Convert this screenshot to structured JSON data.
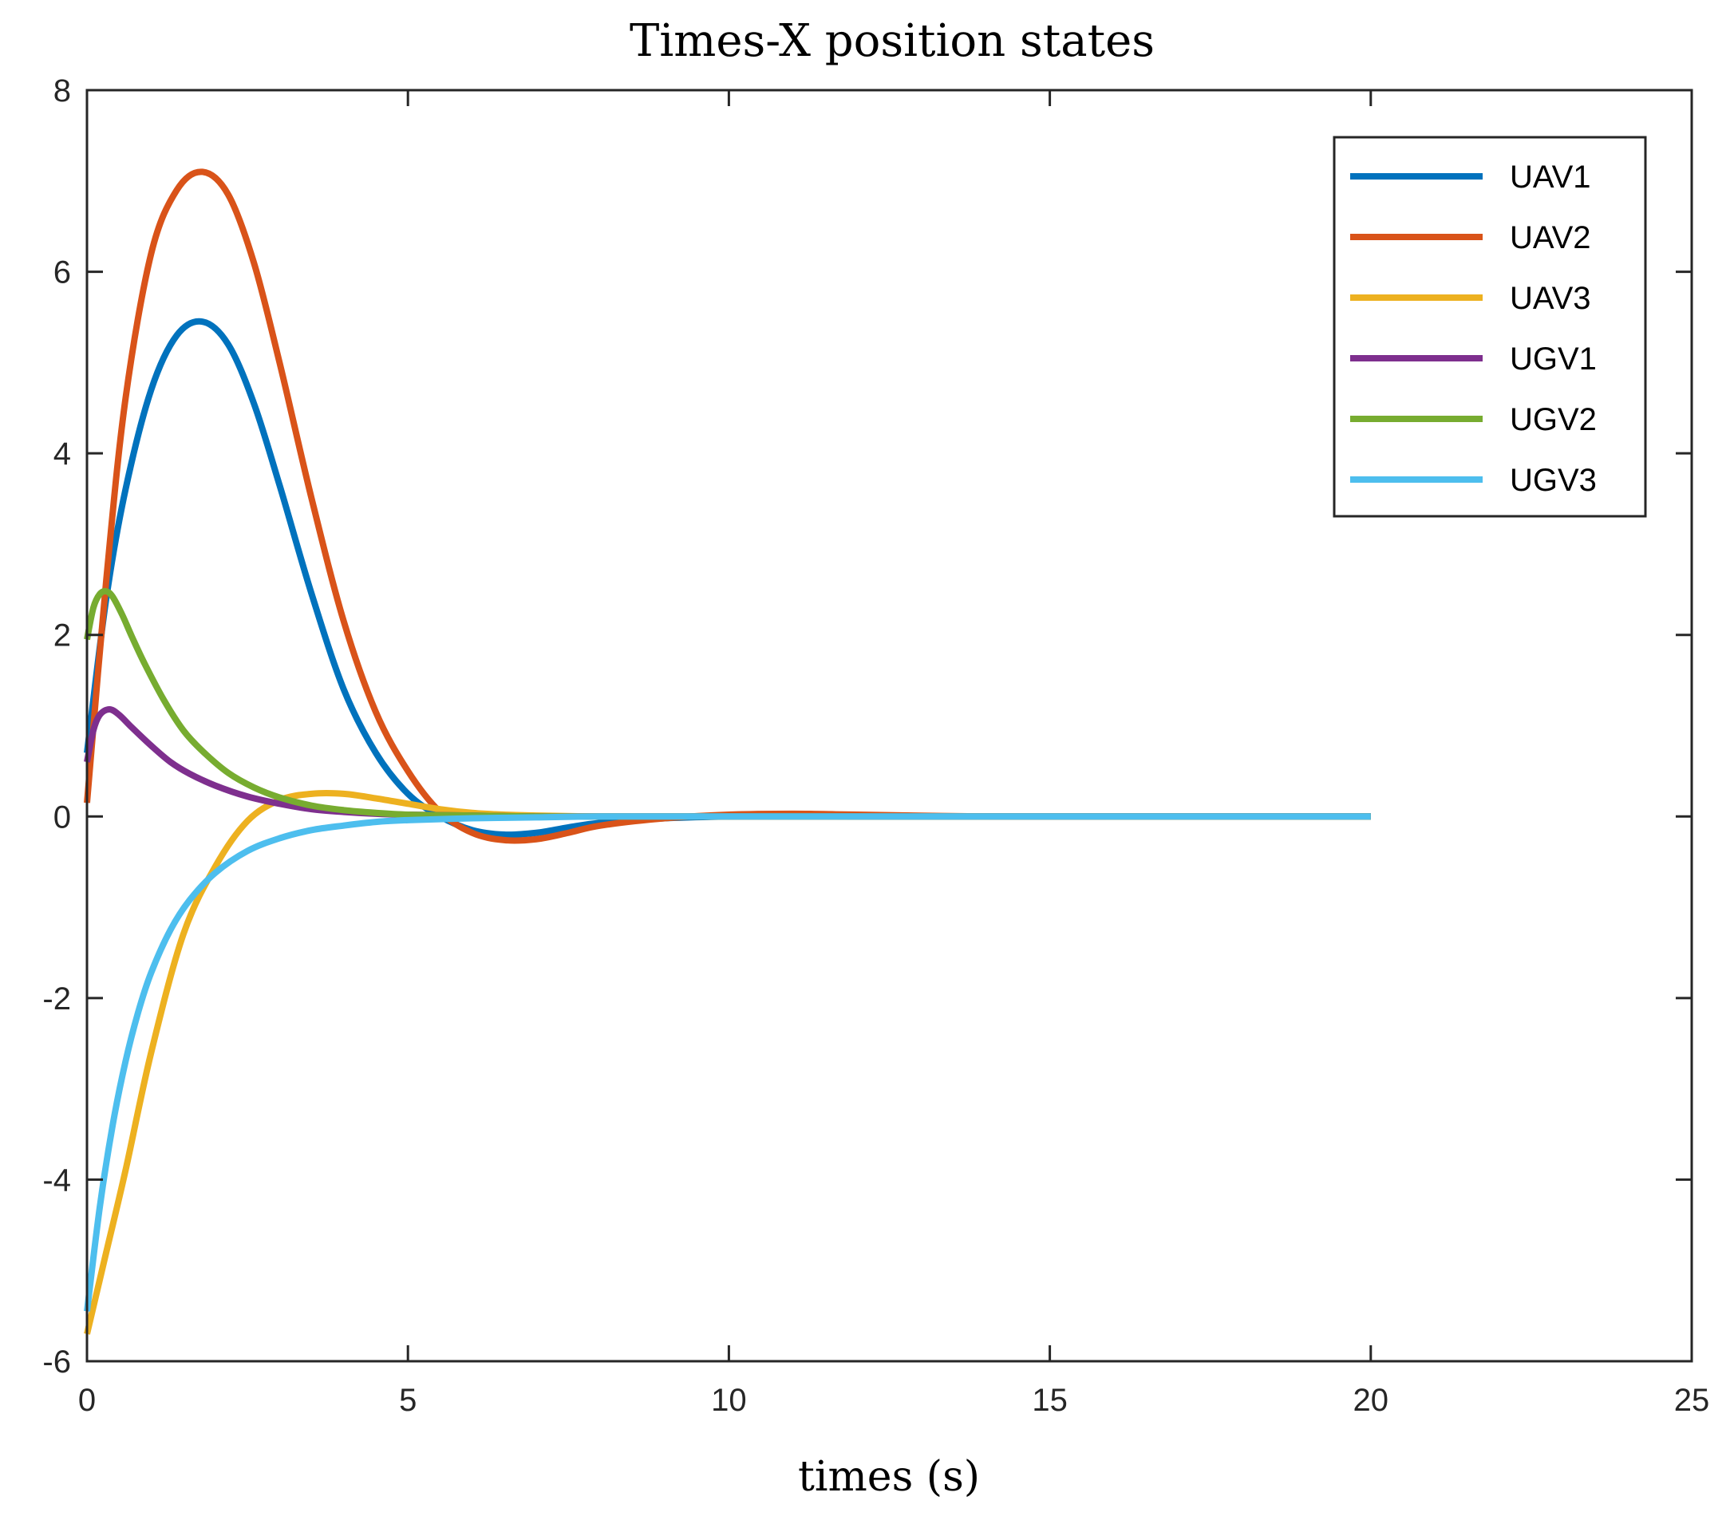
{
  "chart_data": {
    "type": "line",
    "title": "Times-X position states",
    "xlabel": "times (s)",
    "ylabel": "",
    "xlim": [
      0,
      25
    ],
    "ylim": [
      -6,
      8
    ],
    "xticks": [
      0,
      5,
      10,
      15,
      20,
      25
    ],
    "yticks": [
      -6,
      -4,
      -2,
      0,
      2,
      4,
      6,
      8
    ],
    "xtick_labels": [
      "0",
      "5",
      "10",
      "15",
      "20",
      "25"
    ],
    "ytick_labels": [
      "-6",
      "-4",
      "-2",
      "0",
      "2",
      "4",
      "6",
      "8"
    ],
    "grid": false,
    "legend_position": "top-right",
    "series": [
      {
        "name": "UAV1",
        "color": "#0072BD",
        "x": [
          0,
          0.3,
          0.6,
          1.0,
          1.4,
          1.8,
          2.2,
          2.6,
          3.0,
          3.5,
          4.0,
          4.5,
          5.0,
          5.5,
          6.0,
          6.5,
          7.0,
          7.5,
          8.0,
          9.0,
          10.0,
          11.0,
          12.0,
          14.0,
          16.0,
          18.0,
          20.0
        ],
        "y": [
          0.7,
          2.4,
          3.6,
          4.7,
          5.3,
          5.45,
          5.2,
          4.55,
          3.65,
          2.45,
          1.4,
          0.7,
          0.25,
          0.0,
          -0.15,
          -0.2,
          -0.18,
          -0.12,
          -0.07,
          -0.02,
          0.0,
          0.01,
          0.0,
          0.0,
          0.0,
          0.0,
          0.0
        ]
      },
      {
        "name": "UAV2",
        "color": "#D95319",
        "x": [
          0,
          0.3,
          0.6,
          1.0,
          1.4,
          1.8,
          2.2,
          2.6,
          3.0,
          3.5,
          4.0,
          4.5,
          5.0,
          5.5,
          6.0,
          6.5,
          7.0,
          7.5,
          8.0,
          9.0,
          10.0,
          11.0,
          12.0,
          14.0,
          16.0,
          18.0,
          20.0
        ],
        "y": [
          0.15,
          2.6,
          4.6,
          6.2,
          6.9,
          7.1,
          6.85,
          6.1,
          5.0,
          3.5,
          2.15,
          1.15,
          0.5,
          0.05,
          -0.18,
          -0.26,
          -0.25,
          -0.18,
          -0.1,
          -0.02,
          0.02,
          0.03,
          0.02,
          0.0,
          0.0,
          0.0,
          0.0
        ]
      },
      {
        "name": "UAV3",
        "color": "#EDB120",
        "x": [
          0,
          0.3,
          0.6,
          1.0,
          1.5,
          2.0,
          2.5,
          3.0,
          3.5,
          4.0,
          4.5,
          5.0,
          5.5,
          6.0,
          6.5,
          7.0,
          8.0,
          9.0,
          10.0,
          12.0,
          14.0,
          16.0,
          18.0,
          20.0
        ],
        "y": [
          -5.7,
          -4.8,
          -3.9,
          -2.6,
          -1.3,
          -0.55,
          -0.05,
          0.18,
          0.25,
          0.25,
          0.2,
          0.14,
          0.08,
          0.04,
          0.02,
          0.01,
          0.0,
          0.0,
          0.0,
          0.0,
          0.0,
          0.0,
          0.0,
          0.0
        ]
      },
      {
        "name": "UGV1",
        "color": "#7E2F8E",
        "x": [
          0,
          0.1,
          0.2,
          0.35,
          0.5,
          0.7,
          1.0,
          1.3,
          1.6,
          2.0,
          2.5,
          3.0,
          3.5,
          4.0,
          4.5,
          5.0,
          6.0,
          7.0,
          8.0,
          10.0,
          12.0,
          14.0,
          16.0,
          18.0,
          20.0
        ],
        "y": [
          0.6,
          0.95,
          1.12,
          1.18,
          1.12,
          0.98,
          0.78,
          0.6,
          0.47,
          0.34,
          0.22,
          0.14,
          0.08,
          0.05,
          0.03,
          0.02,
          0.01,
          0.0,
          0.0,
          0.0,
          0.0,
          0.0,
          0.0,
          0.0,
          0.0
        ]
      },
      {
        "name": "UGV2",
        "color": "#77AC30",
        "x": [
          0,
          0.1,
          0.2,
          0.3,
          0.4,
          0.55,
          0.7,
          0.9,
          1.2,
          1.5,
          1.8,
          2.2,
          2.6,
          3.0,
          3.5,
          4.0,
          4.5,
          5.0,
          6.0,
          7.0,
          8.0,
          10.0,
          12.0,
          14.0,
          16.0,
          18.0,
          20.0
        ],
        "y": [
          1.95,
          2.3,
          2.45,
          2.48,
          2.42,
          2.22,
          1.98,
          1.68,
          1.28,
          0.95,
          0.72,
          0.48,
          0.32,
          0.21,
          0.12,
          0.07,
          0.04,
          0.02,
          0.01,
          0.0,
          0.0,
          0.0,
          0.0,
          0.0,
          0.0,
          0.0,
          0.0
        ]
      },
      {
        "name": "UGV3",
        "color": "#4DBEEE",
        "x": [
          0,
          0.2,
          0.4,
          0.6,
          0.8,
          1.0,
          1.3,
          1.6,
          2.0,
          2.5,
          3.0,
          3.5,
          4.0,
          4.5,
          5.0,
          6.0,
          7.0,
          8.0,
          10.0,
          12.0,
          14.0,
          16.0,
          18.0,
          20.0
        ],
        "y": [
          -5.45,
          -4.3,
          -3.4,
          -2.7,
          -2.15,
          -1.72,
          -1.25,
          -0.92,
          -0.62,
          -0.38,
          -0.24,
          -0.15,
          -0.1,
          -0.06,
          -0.04,
          -0.02,
          -0.01,
          0.0,
          0.0,
          0.0,
          0.0,
          0.0,
          0.0,
          0.0
        ]
      }
    ]
  }
}
